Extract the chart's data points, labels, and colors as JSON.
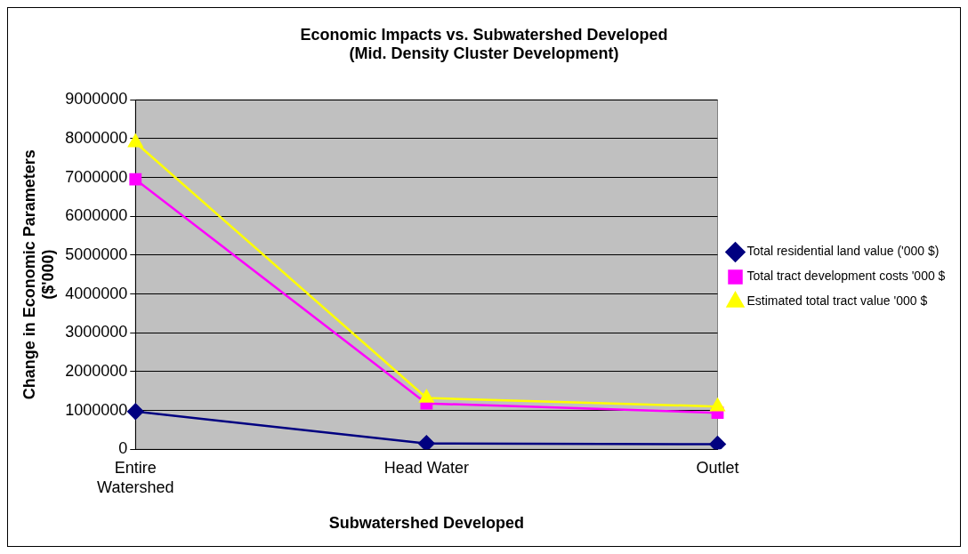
{
  "chart_data": {
    "type": "line",
    "title": [
      "Economic Impacts vs. Subwatershed Developed",
      "(Mid. Density Cluster Development)"
    ],
    "xlabel": "Subwatershed Developed",
    "ylabel": [
      "Change in Economic Parameters",
      "($'000)"
    ],
    "categories": [
      "Entire Watershed",
      "Head Water",
      "Outlet"
    ],
    "series": [
      {
        "name": "Total residential land value ('000 $)",
        "color": "#000080",
        "marker": "diamond",
        "values": [
          970000,
          150000,
          130000
        ]
      },
      {
        "name": "Total tract development costs '000 $",
        "color": "#ff00ff",
        "marker": "square",
        "values": [
          6950000,
          1180000,
          940000
        ]
      },
      {
        "name": "Estimated total tract value '000 $",
        "color": "#ffff00",
        "marker": "triangle",
        "values": [
          7900000,
          1320000,
          1100000
        ]
      }
    ],
    "ylim": [
      0,
      9000000
    ],
    "yticks": [
      0,
      1000000,
      2000000,
      3000000,
      4000000,
      5000000,
      6000000,
      7000000,
      8000000,
      9000000
    ],
    "grid": "y",
    "legend": "right"
  }
}
